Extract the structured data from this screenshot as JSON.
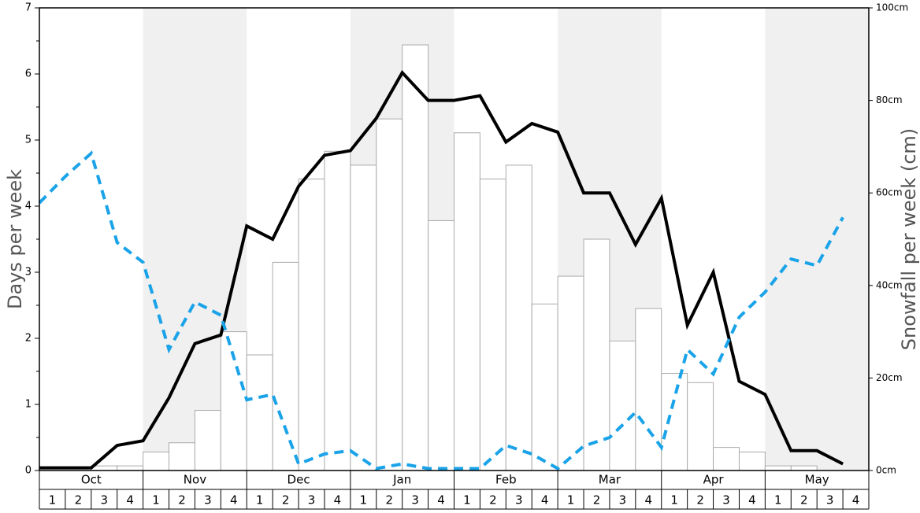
{
  "chart_data": {
    "type": "bar-line",
    "y_label": "Days per week",
    "y2_label": "Snowfall per week (cm)",
    "months": [
      "Oct",
      "Nov",
      "Dec",
      "Jan",
      "Feb",
      "Mar",
      "Apr",
      "May"
    ],
    "shaded_months": [
      false,
      true,
      false,
      true,
      false,
      true,
      false,
      true
    ],
    "shade_color": "#f0f0f0",
    "categories": [
      "1",
      "2",
      "3",
      "4",
      "1",
      "2",
      "3",
      "4",
      "1",
      "2",
      "3",
      "4",
      "1",
      "2",
      "3",
      "4",
      "1",
      "2",
      "3",
      "4",
      "1",
      "2",
      "3",
      "4",
      "1",
      "2",
      "3",
      "4",
      "1",
      "2",
      "3",
      "4"
    ],
    "ylim": [
      0,
      7
    ],
    "yticks": [
      0,
      1,
      2,
      3,
      4,
      5,
      6,
      7
    ],
    "y2lim": [
      0,
      100
    ],
    "y2ticks": [
      {
        "value": 0,
        "label": "0cm"
      },
      {
        "value": 20,
        "label": "20cm"
      },
      {
        "value": 40,
        "label": "40cm"
      },
      {
        "value": 60,
        "label": "60cm"
      },
      {
        "value": 80,
        "label": "80cm"
      },
      {
        "value": 100,
        "label": "100cm"
      }
    ],
    "series": [
      {
        "type": "bar",
        "axis": "y2",
        "color": "#ffffff",
        "stroke": "#aaaaaa",
        "values": [
          0,
          0,
          1,
          1,
          4,
          6,
          13,
          30,
          25,
          45,
          63,
          69,
          66,
          76,
          92,
          54,
          73,
          63,
          66,
          36,
          42,
          50,
          28,
          35,
          21,
          19,
          5,
          4,
          1,
          1,
          0,
          0
        ]
      },
      {
        "type": "line",
        "color": "#000000",
        "dashed": false,
        "values": [
          0.04,
          0.04,
          0.04,
          0.38,
          0.45,
          1.1,
          1.92,
          2.05,
          3.7,
          3.5,
          4.3,
          4.77,
          4.84,
          5.33,
          6.02,
          5.6,
          5.6,
          5.67,
          4.97,
          5.25,
          5.12,
          4.2,
          4.2,
          3.42,
          4.12,
          2.2,
          3.0,
          1.35,
          1.15,
          0.3,
          0.3,
          0.1
        ]
      },
      {
        "type": "line",
        "color": "#1aa3e8",
        "dashed": true,
        "values": [
          4.05,
          4.45,
          4.8,
          3.45,
          3.15,
          1.83,
          2.55,
          2.35,
          1.07,
          1.15,
          0.1,
          0.25,
          0.3,
          0.03,
          0.1,
          0.03,
          0.03,
          0.03,
          0.38,
          0.25,
          0.03,
          0.37,
          0.5,
          0.88,
          0.35,
          1.83,
          1.46,
          2.32,
          2.7,
          3.2,
          3.1,
          3.83
        ]
      }
    ]
  }
}
